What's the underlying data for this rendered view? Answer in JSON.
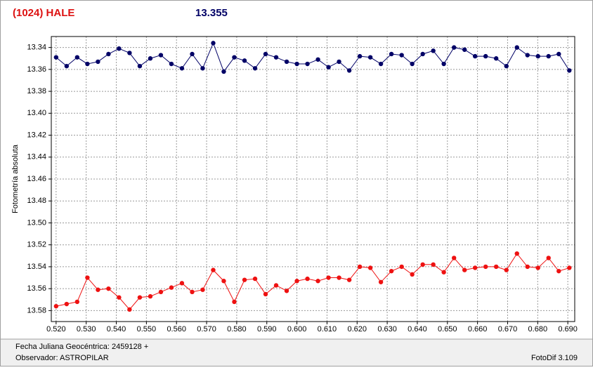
{
  "chart_data": {
    "type": "line",
    "title": "(1024) HALE",
    "subtitle": "13.355",
    "y_label": "Fotometría absoluta",
    "annotations": [
      "Fecha Juliana Geocéntrica: 2459128 +",
      "Observador: ASTROPILAR",
      "FotoDif 3.109"
    ],
    "x": [
      0.52,
      0.5235,
      0.527,
      0.5304,
      0.5339,
      0.5374,
      0.5409,
      0.5444,
      0.5478,
      0.5513,
      0.5548,
      0.5583,
      0.5618,
      0.5652,
      0.5687,
      0.5722,
      0.5757,
      0.5792,
      0.5826,
      0.5861,
      0.5896,
      0.5931,
      0.5966,
      0.6,
      0.6035,
      0.607,
      0.6105,
      0.614,
      0.6174,
      0.6209,
      0.6244,
      0.6279,
      0.6314,
      0.6348,
      0.6383,
      0.6418,
      0.6453,
      0.6488,
      0.6522,
      0.6557,
      0.6592,
      0.6627,
      0.6662,
      0.6696,
      0.6731,
      0.6766,
      0.6801,
      0.6836,
      0.687,
      0.6905
    ],
    "series": [
      {
        "color": "#000066",
        "values": [
          13.349,
          13.357,
          13.349,
          13.355,
          13.353,
          13.346,
          13.341,
          13.345,
          13.357,
          13.35,
          13.347,
          13.355,
          13.359,
          13.346,
          13.359,
          13.336,
          13.362,
          13.349,
          13.352,
          13.359,
          13.346,
          13.349,
          13.353,
          13.355,
          13.355,
          13.351,
          13.358,
          13.353,
          13.361,
          13.348,
          13.349,
          13.355,
          13.346,
          13.347,
          13.355,
          13.346,
          13.343,
          13.355,
          13.34,
          13.342,
          13.348,
          13.348,
          13.35,
          13.357,
          13.34,
          13.347,
          13.348,
          13.348,
          13.346,
          13.361
        ]
      },
      {
        "color": "#ee1111",
        "values": [
          13.576,
          13.574,
          13.572,
          13.55,
          13.561,
          13.56,
          13.568,
          13.579,
          13.568,
          13.567,
          13.563,
          13.559,
          13.555,
          13.563,
          13.561,
          13.543,
          13.553,
          13.572,
          13.552,
          13.551,
          13.565,
          13.557,
          13.562,
          13.553,
          13.551,
          13.553,
          13.55,
          13.55,
          13.552,
          13.54,
          13.541,
          13.554,
          13.544,
          13.54,
          13.547,
          13.538,
          13.538,
          13.545,
          13.532,
          13.543,
          13.541,
          13.54,
          13.54,
          13.543,
          13.528,
          13.54,
          13.541,
          13.532,
          13.544,
          13.541
        ]
      }
    ],
    "xlim": [
      0.5184,
      0.6923
    ],
    "xticks": [
      {
        "value": 0.52,
        "label": "0.520"
      },
      {
        "value": 0.53,
        "label": "0.530"
      },
      {
        "value": 0.54,
        "label": "0.540"
      },
      {
        "value": 0.55,
        "label": "0.550"
      },
      {
        "value": 0.56,
        "label": "0.560"
      },
      {
        "value": 0.57,
        "label": "0.570"
      },
      {
        "value": 0.58,
        "label": "0.580"
      },
      {
        "value": 0.59,
        "label": "0.590"
      },
      {
        "value": 0.6,
        "label": "0.600"
      },
      {
        "value": 0.61,
        "label": "0.610"
      },
      {
        "value": 0.62,
        "label": "0.620"
      },
      {
        "value": 0.63,
        "label": "0.630"
      },
      {
        "value": 0.64,
        "label": "0.640"
      },
      {
        "value": 0.65,
        "label": "0.650"
      },
      {
        "value": 0.66,
        "label": "0.660"
      },
      {
        "value": 0.67,
        "label": "0.670"
      },
      {
        "value": 0.68,
        "label": "0.680"
      },
      {
        "value": 0.69,
        "label": "0.690"
      }
    ],
    "ylim": [
      13.33,
      13.59
    ],
    "y_inverted": true,
    "yticks": [
      13.34,
      13.36,
      13.38,
      {
        "value": 13.4,
        "label": "13.40"
      },
      13.42,
      13.44,
      13.46,
      13.48,
      {
        "value": 13.5,
        "label": "13.50"
      },
      13.52,
      13.54,
      13.56,
      13.58
    ],
    "grid": true
  }
}
